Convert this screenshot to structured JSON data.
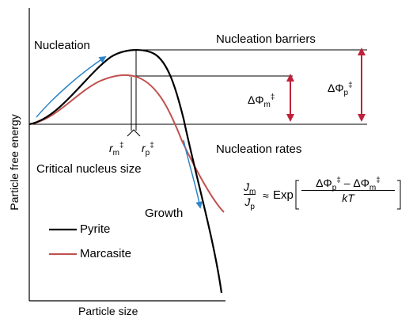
{
  "axes": {
    "ylabel": "Particle free energy",
    "xlabel": "Particle size"
  },
  "labels": {
    "nucleation": "Nucleation",
    "growth": "Growth",
    "nucleation_barriers": "Nucleation barriers",
    "nucleation_rates": "Nucleation rates",
    "critical_nucleus_size": "Critical nucleus size"
  },
  "symbols": {
    "delta_phi": "ΔΦ",
    "r": "r",
    "dagger": "‡",
    "sub_m": "m",
    "sub_p": "p",
    "J": "J",
    "approx": "≈",
    "exp": "Exp",
    "minus": "–",
    "kT": "kT"
  },
  "legend": [
    {
      "label": "Pyrite",
      "color": "#000000"
    },
    {
      "label": "Marcasite",
      "color": "#c0504d"
    }
  ],
  "colors": {
    "arrow_blue": "#2e86c8",
    "barrier_red": "#c0203a"
  }
}
